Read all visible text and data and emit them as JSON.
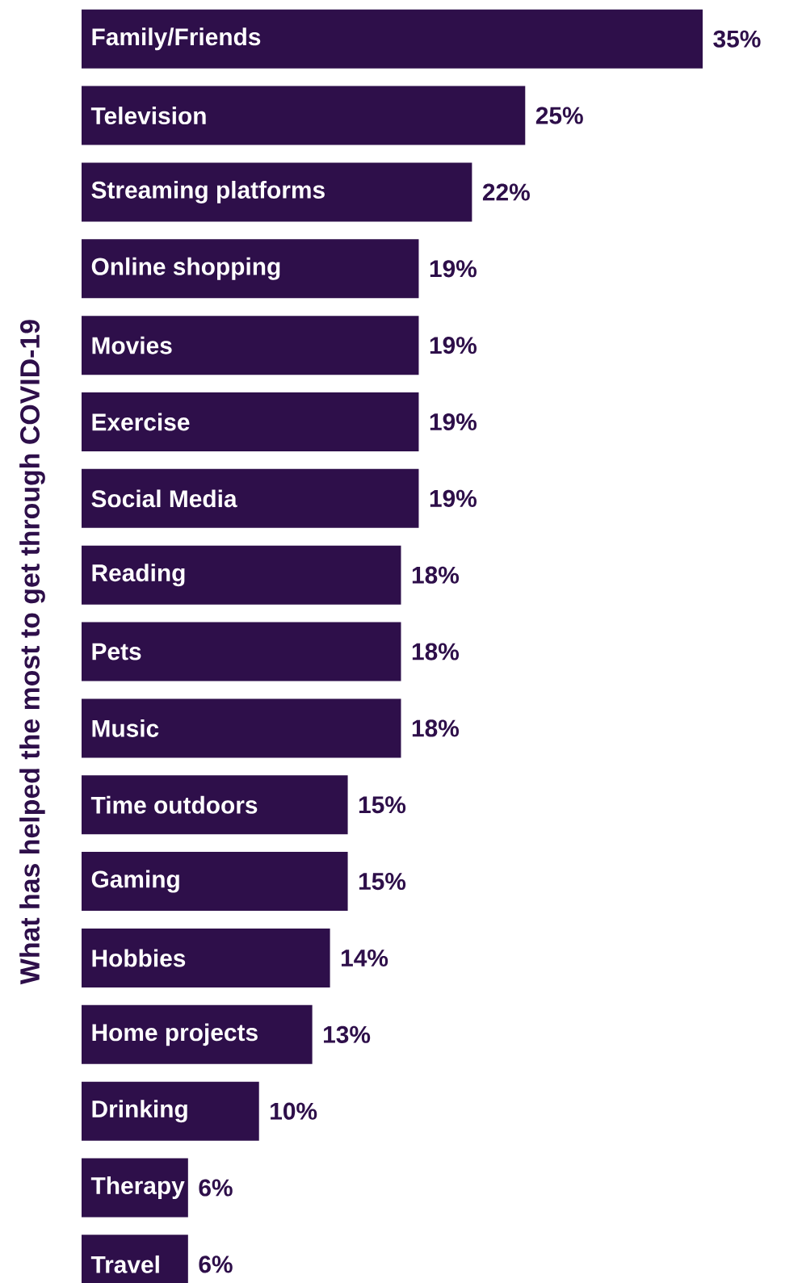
{
  "chart_data": {
    "type": "bar",
    "orientation": "horizontal",
    "ylabel": "What has helped the most to get through COVID-19",
    "categories": [
      "Family/Friends",
      "Television",
      "Streaming platforms",
      "Online shopping",
      "Movies",
      "Exercise",
      "Social Media",
      "Reading",
      "Pets",
      "Music",
      "Time outdoors",
      "Gaming",
      "Hobbies",
      "Home projects",
      "Drinking",
      "Therapy",
      "Travel"
    ],
    "values": [
      35,
      25,
      22,
      19,
      19,
      19,
      19,
      18,
      18,
      18,
      15,
      15,
      14,
      13,
      10,
      6,
      6
    ],
    "value_labels": [
      "35%",
      "25%",
      "22%",
      "19%",
      "19%",
      "19%",
      "19%",
      "18%",
      "18%",
      "18%",
      "15%",
      "15%",
      "14%",
      "13%",
      "10%",
      "6%",
      "6%"
    ],
    "color": "#2e0f4a"
  }
}
